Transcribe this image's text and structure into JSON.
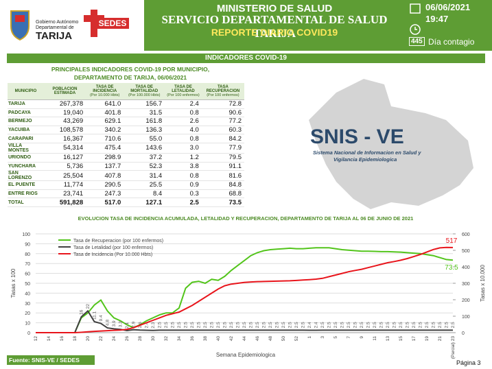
{
  "header": {
    "gov_lines": [
      "Gobierno Autónomo",
      "Departamental de"
    ],
    "gov_name": "TARIJA",
    "sedes": "SEDES",
    "title1": "MINISTERIO DE SALUD",
    "title2": "SERVICIO DEPARTAMENTAL DE SALUD TARIJA",
    "title3": "REPORTE DIARIO COVID19",
    "date": "06/06/2021",
    "time": "19:47",
    "day_number": "445",
    "day_label": "Día contagio"
  },
  "section_title": "INDICADORES COVID-19",
  "table": {
    "title_lines": [
      "PRINCIPALES INDICADORES COVID-19 POR MUNICIPIO,",
      "DEPARTAMENTO DE TARIJA, 06/06/2021"
    ],
    "columns": [
      {
        "name": "MUNICIPIO"
      },
      {
        "name": "POBLACION ESTIMADA"
      },
      {
        "name": "TASA DE INCIDENCIA",
        "unit": "(Por 10.000 Hbts)"
      },
      {
        "name": "TASA DE MORTALIDAD",
        "unit": "(Por 100.000 Hbts)"
      },
      {
        "name": "TASA DE LETALIDAD",
        "unit": "(Por 100 enfermos)"
      },
      {
        "name": "TASA RECUPERACION",
        "unit": "(Por 100 enfermos)"
      }
    ],
    "rows": [
      [
        "TARIJA",
        "267,378",
        "641.0",
        "156.7",
        "2.4",
        "72.8"
      ],
      [
        "PADCAYA",
        "19,040",
        "401.8",
        "31.5",
        "0.8",
        "90.6"
      ],
      [
        "BERMEJO",
        "43,269",
        "629.1",
        "161.8",
        "2.6",
        "77.2"
      ],
      [
        "YACUIBA",
        "108,578",
        "340.2",
        "136.3",
        "4.0",
        "60.3"
      ],
      [
        "CARAPARI",
        "16,367",
        "710.6",
        "55.0",
        "0.8",
        "84.2"
      ],
      [
        "VILLA MONTES",
        "54,314",
        "475.4",
        "143.6",
        "3.0",
        "77.9"
      ],
      [
        "URIONDO",
        "16,127",
        "298.9",
        "37.2",
        "1.2",
        "79.5"
      ],
      [
        "YUNCHARA",
        "5,736",
        "137.7",
        "52.3",
        "3.8",
        "91.1"
      ],
      [
        "SAN LORENZO",
        "25,504",
        "407.8",
        "31.4",
        "0.8",
        "81.6"
      ],
      [
        "EL PUENTE",
        "11,774",
        "290.5",
        "25.5",
        "0.9",
        "84.8"
      ],
      [
        "ENTRE RIOS",
        "23,741",
        "247.3",
        "8.4",
        "0.3",
        "68.8"
      ]
    ],
    "total": [
      "TOTAL",
      "591,828",
      "517.0",
      "127.1",
      "2.5",
      "73.5"
    ]
  },
  "logo": {
    "name": "SNIS - VE",
    "subtitle_lines": [
      "Sistema Nacional de Informacion en Salud y",
      "Vigilancia Epidemiologica"
    ]
  },
  "chart_data": {
    "type": "line",
    "title": "EVOLUCION TASA DE INCIDENCIA ACUMULADA, LETALIDAD Y RECUPERACION, DEPARTAMENTO DE TARIJA AL  06 DE JUNIO DE 2021",
    "x_label": "Semana Epidemiologica",
    "y_label": "Tasas x 100",
    "y2_label": "Tasas x 10.000",
    "categories": [
      "12",
      null,
      "14",
      null,
      "16",
      null,
      "18",
      null,
      "20",
      null,
      "22",
      null,
      "24",
      null,
      "26",
      null,
      "28",
      null,
      "30",
      null,
      "32",
      null,
      "34",
      null,
      "36",
      null,
      "38",
      null,
      "40",
      null,
      "42",
      null,
      "44",
      null,
      "46",
      null,
      "48",
      null,
      "50",
      null,
      "52",
      null,
      "1",
      null,
      "3",
      null,
      "5",
      null,
      "7",
      null,
      "9",
      null,
      "11",
      null,
      "13",
      null,
      "15",
      null,
      "17",
      null,
      "19",
      null,
      "21",
      null,
      "(Parcial) 23"
    ],
    "ylim": [
      0,
      100
    ],
    "yticks": [
      0,
      10,
      20,
      30,
      40,
      50,
      60,
      70,
      80,
      90,
      100
    ],
    "y2lim": [
      0,
      600
    ],
    "y2ticks": [
      0,
      100,
      200,
      300,
      400,
      500,
      600
    ],
    "grid": true,
    "legend": "upper left",
    "series": [
      {
        "name": "Tasa de Recuperacion (por 100 enfermos)",
        "color": "#52c41a",
        "label_last": "below",
        "values": [
          0,
          0,
          0,
          0,
          0,
          0,
          0,
          15,
          20,
          28,
          33,
          22,
          15,
          12,
          8,
          5,
          8,
          12,
          15,
          18,
          20,
          20,
          25,
          45,
          51,
          52,
          50,
          54,
          53,
          57,
          63,
          68,
          73,
          78,
          81,
          83,
          84,
          84.5,
          85,
          85.5,
          85,
          85,
          85.5,
          86,
          86,
          86,
          85,
          84,
          83.5,
          83,
          82.5,
          82.5,
          82.3,
          82,
          82,
          81.8,
          81.5,
          81,
          80.5,
          80,
          79,
          78,
          76,
          74,
          73.5
        ]
      },
      {
        "name": "Tasa de Letalidad (por 100 enfermos)",
        "color": "#404040",
        "data_labels": true,
        "values": [
          0,
          0,
          0,
          0,
          0,
          0,
          0,
          16,
          22,
          11.1,
          9.4,
          4.8,
          3.9,
          3.3,
          2.1,
          2.9,
          2.6,
          2.4,
          2.3,
          2.5,
          2.5,
          2.5,
          2.5,
          2.5,
          2.5,
          2.5,
          2.5,
          2.5,
          2.5,
          2.5,
          2.5,
          2.5,
          2.5,
          2.5,
          2.5,
          2.5,
          2.5,
          2.5,
          2.5,
          2.5,
          2.5,
          2.5,
          2.4,
          2.4,
          2.5,
          2.5,
          2.5,
          2.5,
          2.5,
          2.5,
          2.5,
          2.5,
          2.5,
          2.5,
          2.5,
          2.5,
          2.5,
          2.5,
          2.5,
          2.5,
          2.5,
          2.5,
          2.5,
          2.5,
          2.5
        ]
      },
      {
        "name": "Tasa de Incidencia (Por 10.000 Hbts)",
        "color": "#e8141b",
        "axis": "y2",
        "label_last": "above",
        "values": [
          0,
          0,
          0,
          0,
          0,
          0,
          0,
          2,
          5,
          8,
          10,
          12,
          14,
          16,
          20,
          30,
          45,
          60,
          75,
          90,
          105,
          115,
          125,
          145,
          165,
          190,
          215,
          240,
          265,
          285,
          295,
          300,
          305,
          308,
          310,
          311,
          312,
          313,
          314,
          315,
          317,
          320,
          322,
          325,
          330,
          340,
          350,
          360,
          370,
          378,
          385,
          395,
          405,
          415,
          425,
          432,
          440,
          450,
          462,
          475,
          490,
          505,
          515,
          518,
          517
        ]
      }
    ]
  },
  "footer": {
    "source": "Fuente: SNIS-VE / SEDES TARIJA",
    "page": "Página 3"
  }
}
